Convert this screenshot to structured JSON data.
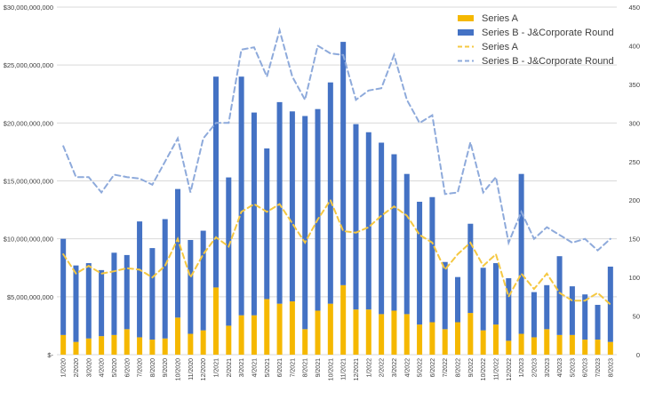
{
  "chart_data": {
    "type": "bar",
    "stacked": true,
    "categories": [
      "1/2020",
      "2/2020",
      "3/2020",
      "4/2020",
      "5/2020",
      "6/2020",
      "7/2020",
      "8/2020",
      "9/2020",
      "10/2020",
      "11/2020",
      "12/2020",
      "1/2021",
      "2/2021",
      "3/2021",
      "4/2021",
      "5/2021",
      "6/2021",
      "7/2021",
      "8/2021",
      "9/2021",
      "10/2021",
      "11/2021",
      "12/2021",
      "1/2022",
      "2/2022",
      "3/2022",
      "4/2022",
      "5/2022",
      "6/2022",
      "7/2022",
      "8/2022",
      "9/2022",
      "10/2022",
      "11/2022",
      "12/2022",
      "1/2023",
      "2/2023",
      "3/2023",
      "4/2023",
      "5/2023",
      "6/2023",
      "7/2023",
      "8/2023"
    ],
    "left_axis": {
      "ylim": [
        0,
        30000000000
      ],
      "ticks": [
        0,
        5000000000,
        10000000000,
        15000000000,
        20000000000,
        25000000000,
        30000000000
      ],
      "tick_labels": [
        "$-",
        "$5,000,000,000",
        "$10,000,000,000",
        "$15,000,000,000",
        "$20,000,000,000",
        "$25,000,000,000",
        "$30,000,000,000"
      ]
    },
    "right_axis": {
      "ylim": [
        0,
        450
      ],
      "ticks": [
        0,
        50,
        100,
        150,
        200,
        250,
        300,
        350,
        400,
        450
      ],
      "tick_labels": [
        "0",
        "50",
        "100",
        "150",
        "200",
        "250",
        "300",
        "350",
        "400",
        "450"
      ]
    },
    "legend_position": "top-right",
    "grid": true,
    "series": [
      {
        "name": "Series A",
        "kind": "bar",
        "axis": "left",
        "color": "#f5b800",
        "values": [
          1700000000,
          1100000000,
          1400000000,
          1600000000,
          1700000000,
          2200000000,
          1500000000,
          1300000000,
          1400000000,
          3200000000,
          1800000000,
          2100000000,
          5800000000,
          2500000000,
          3400000000,
          3400000000,
          4800000000,
          4400000000,
          4600000000,
          2200000000,
          3800000000,
          4400000000,
          6000000000,
          3900000000,
          3900000000,
          3500000000,
          3800000000,
          3500000000,
          2600000000,
          2800000000,
          2200000000,
          2800000000,
          3600000000,
          2100000000,
          2600000000,
          1200000000,
          1800000000,
          1500000000,
          2200000000,
          1700000000,
          1700000000,
          1300000000,
          1300000000,
          1100000000
        ]
      },
      {
        "name": "Series B - J&Corporate Round",
        "kind": "bar",
        "axis": "left",
        "color": "#4472c4",
        "values": [
          8300000000,
          6600000000,
          6500000000,
          5700000000,
          7100000000,
          6400000000,
          10000000000,
          7900000000,
          10300000000,
          11100000000,
          8100000000,
          8600000000,
          18200000000,
          12800000000,
          20600000000,
          17500000000,
          13000000000,
          17400000000,
          16400000000,
          18400000000,
          17400000000,
          19100000000,
          21000000000,
          16000000000,
          15300000000,
          14800000000,
          13500000000,
          12100000000,
          10600000000,
          10800000000,
          5800000000,
          3900000000,
          7700000000,
          5400000000,
          5300000000,
          5400000000,
          13800000000,
          3900000000,
          3800000000,
          6800000000,
          4200000000,
          3900000000,
          3000000000,
          6500000000
        ]
      },
      {
        "name": "Series A",
        "kind": "line",
        "axis": "right",
        "dash": true,
        "color": "#f5c842",
        "values": [
          130,
          105,
          115,
          105,
          108,
          112,
          110,
          100,
          115,
          150,
          100,
          130,
          152,
          140,
          185,
          195,
          185,
          195,
          170,
          145,
          175,
          200,
          160,
          158,
          165,
          180,
          192,
          180,
          155,
          145,
          110,
          130,
          145,
          115,
          130,
          75,
          105,
          85,
          105,
          80,
          70,
          70,
          80,
          65
        ]
      },
      {
        "name": "Series B - J&Corporate Round",
        "kind": "line",
        "axis": "right",
        "dash": true,
        "color": "#8eaadb",
        "values": [
          270,
          230,
          230,
          210,
          233,
          230,
          228,
          220,
          250,
          280,
          210,
          280,
          300,
          300,
          395,
          398,
          360,
          420,
          360,
          330,
          400,
          390,
          388,
          330,
          342,
          345,
          388,
          330,
          300,
          310,
          208,
          210,
          275,
          210,
          230,
          145,
          185,
          150,
          165,
          155,
          145,
          150,
          135,
          150
        ]
      }
    ]
  }
}
